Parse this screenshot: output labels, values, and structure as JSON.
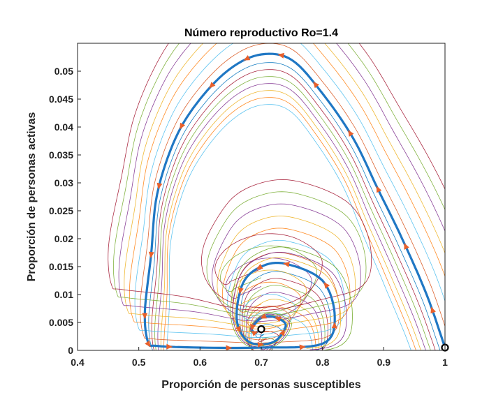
{
  "chart_data": {
    "type": "line",
    "title": "Número reproductivo Ro=1.4",
    "xlabel": "Proporción de personas susceptibles",
    "ylabel": "Proporción de personas activas",
    "xlim": [
      0.4,
      1.0
    ],
    "ylim": [
      0,
      0.055
    ],
    "xticks": [
      "0.4",
      "0.5",
      "0.6",
      "0.7",
      "0.8",
      "0.9",
      "1"
    ],
    "yticks": [
      "0",
      "0.005",
      "0.01",
      "0.015",
      "0.02",
      "0.025",
      "0.03",
      "0.035",
      "0.04",
      "0.045",
      "0.05"
    ],
    "grid": false,
    "legend": "none",
    "main_trajectory": {
      "color": "#1f77c4",
      "arrow_color": "#e8602c",
      "x": [
        1.0,
        0.97,
        0.93,
        0.89,
        0.85,
        0.8,
        0.75,
        0.7,
        0.65,
        0.6,
        0.56,
        0.53,
        0.52,
        0.51,
        0.515,
        0.53,
        0.6,
        0.7,
        0.8,
        0.82,
        0.8,
        0.74,
        0.7,
        0.67,
        0.66,
        0.68,
        0.72,
        0.74,
        0.72,
        0.7,
        0.685,
        0.69,
        0.7
      ],
      "y": [
        0.0005,
        0.01,
        0.02,
        0.029,
        0.038,
        0.046,
        0.052,
        0.053,
        0.0505,
        0.045,
        0.038,
        0.028,
        0.017,
        0.007,
        0.0015,
        0.0008,
        0.0005,
        0.0005,
        0.0012,
        0.006,
        0.0125,
        0.0155,
        0.015,
        0.012,
        0.0055,
        0.0015,
        0.0015,
        0.0045,
        0.006,
        0.0058,
        0.004,
        0.0032,
        0.0038
      ]
    },
    "equilibrium_points": [
      {
        "x": 1.0,
        "y": 0.0005
      },
      {
        "x": 0.7,
        "y": 0.0038
      }
    ],
    "background_colors": [
      "#4dbeee",
      "#ff7f0e",
      "#edb120",
      "#7e2f8e",
      "#77ac30",
      "#a2142f",
      "#0072bd",
      "#d95319"
    ]
  }
}
